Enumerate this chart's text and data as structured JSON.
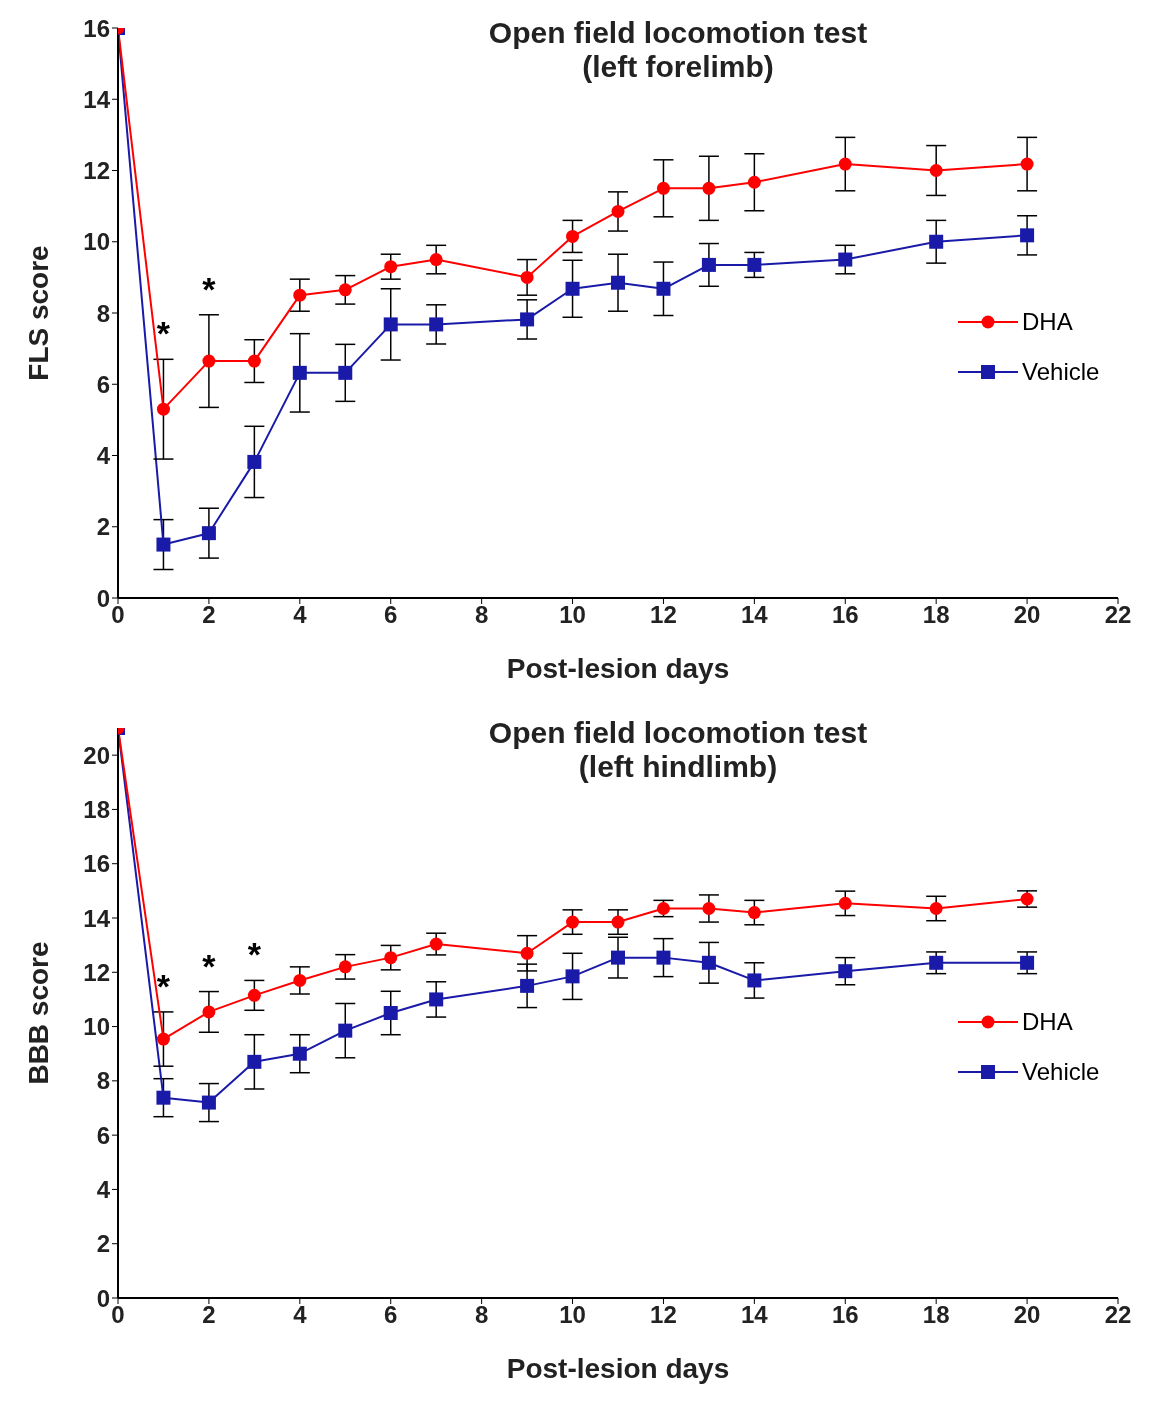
{
  "chart_data": [
    {
      "type": "line",
      "title": "Open field locomotion test\n(left forelimb)",
      "xlabel": "Post-lesion days",
      "ylabel": "FLS score",
      "x": [
        0,
        1,
        2,
        3,
        4,
        5,
        6,
        7,
        9,
        10,
        11,
        12,
        13,
        14,
        16,
        18,
        20
      ],
      "xlim": [
        0,
        22
      ],
      "xticks": [
        0,
        2,
        4,
        6,
        8,
        10,
        12,
        14,
        16,
        18,
        20,
        22
      ],
      "ylim": [
        0,
        16
      ],
      "yticks": [
        0,
        2,
        4,
        6,
        8,
        10,
        12,
        14,
        16
      ],
      "grid": false,
      "legend": "right",
      "line_style": "solid",
      "series": [
        {
          "name": "DHA",
          "color": "#ff0000",
          "marker": "circle",
          "values": [
            16,
            5.3,
            6.65,
            6.65,
            8.5,
            8.65,
            9.3,
            9.5,
            9.0,
            10.15,
            10.85,
            11.5,
            11.5,
            11.67,
            12.18,
            12.0,
            12.18
          ],
          "errors": [
            null,
            1.4,
            1.3,
            0.6,
            0.45,
            0.4,
            0.35,
            0.4,
            0.5,
            0.45,
            0.55,
            0.8,
            0.9,
            0.8,
            0.75,
            0.7,
            0.75
          ]
        },
        {
          "name": "Vehicle",
          "color": "#1a1aa8",
          "marker": "square",
          "values": [
            16,
            1.5,
            1.82,
            3.82,
            6.32,
            6.32,
            7.68,
            7.68,
            7.82,
            8.68,
            8.85,
            8.68,
            9.35,
            9.35,
            9.5,
            10.0,
            10.18
          ],
          "errors": [
            null,
            0.7,
            0.7,
            1.0,
            1.1,
            0.8,
            1.0,
            0.55,
            0.55,
            0.8,
            0.8,
            0.75,
            0.6,
            0.35,
            0.4,
            0.6,
            0.55
          ]
        }
      ],
      "annotations": [
        "*",
        "*"
      ]
    },
    {
      "type": "line",
      "title": "Open field locomotion test\n(left hindlimb)",
      "xlabel": "Post-lesion days",
      "ylabel": "BBB score",
      "x": [
        0,
        1,
        2,
        3,
        4,
        5,
        6,
        7,
        9,
        10,
        11,
        12,
        13,
        14,
        16,
        18,
        20
      ],
      "xlim": [
        0,
        22
      ],
      "xticks": [
        0,
        2,
        4,
        6,
        8,
        10,
        12,
        14,
        16,
        18,
        20,
        22
      ],
      "ylim": [
        0,
        21
      ],
      "yticks": [
        0,
        2,
        4,
        6,
        8,
        10,
        12,
        14,
        16,
        18,
        20
      ],
      "grid": false,
      "legend": "right",
      "line_style": "solid",
      "series": [
        {
          "name": "DHA",
          "color": "#ff0000",
          "marker": "circle",
          "values": [
            21,
            9.54,
            10.54,
            11.15,
            11.7,
            12.2,
            12.54,
            13.04,
            12.7,
            13.85,
            13.85,
            14.35,
            14.35,
            14.2,
            14.54,
            14.35,
            14.7
          ],
          "errors": [
            null,
            1.0,
            0.75,
            0.55,
            0.5,
            0.45,
            0.45,
            0.4,
            0.65,
            0.45,
            0.45,
            0.3,
            0.5,
            0.45,
            0.45,
            0.45,
            0.3
          ]
        },
        {
          "name": "Vehicle",
          "color": "#1a1aa8",
          "marker": "square",
          "values": [
            21,
            7.38,
            7.2,
            8.7,
            9.0,
            9.85,
            10.5,
            11.0,
            11.5,
            11.85,
            12.54,
            12.54,
            12.35,
            11.7,
            12.04,
            12.35,
            12.35
          ],
          "errors": [
            null,
            0.7,
            0.7,
            1.0,
            0.7,
            1.0,
            0.8,
            0.65,
            0.8,
            0.85,
            0.75,
            0.7,
            0.75,
            0.65,
            0.5,
            0.4,
            0.4
          ]
        }
      ],
      "annotations": [
        "*",
        "*",
        "*"
      ]
    }
  ]
}
